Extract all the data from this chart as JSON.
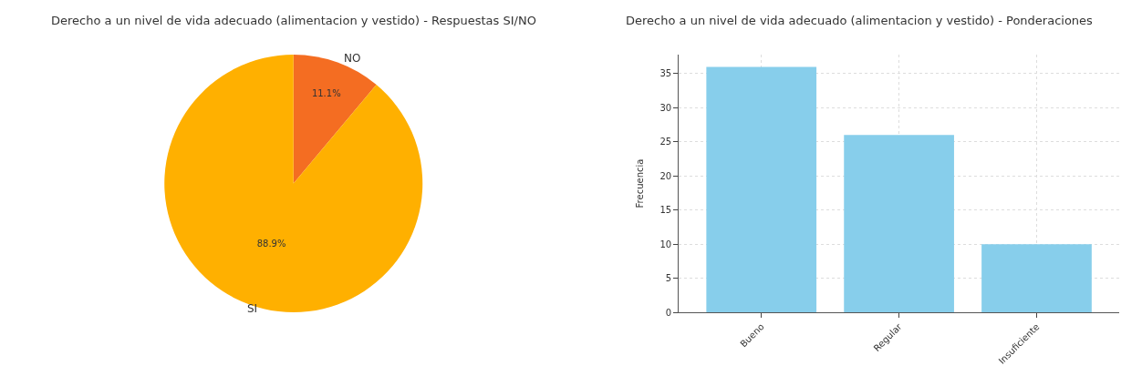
{
  "chart_data": [
    {
      "type": "pie",
      "title": "Derecho a un nivel de vida adecuado (alimentacion y vestido) - Respuestas SI/NO",
      "categories": [
        "SI",
        "NO"
      ],
      "values": [
        88.9,
        11.1
      ],
      "colors": [
        "#ffb000",
        "#f46d22"
      ],
      "value_labels": [
        "88.9%",
        "11.1%"
      ]
    },
    {
      "type": "bar",
      "title": "Derecho a un nivel de vida adecuado (alimentacion y vestido) - Ponderaciones",
      "ylabel": "Frecuencia",
      "categories": [
        "Bueno",
        "Regular",
        "Insuficiente"
      ],
      "values": [
        36,
        26,
        10
      ],
      "color": "#87ceeb",
      "ylim": [
        0,
        37.8
      ],
      "yticks": [
        0,
        5,
        10,
        15,
        20,
        25,
        30,
        35
      ],
      "grid": true
    }
  ]
}
